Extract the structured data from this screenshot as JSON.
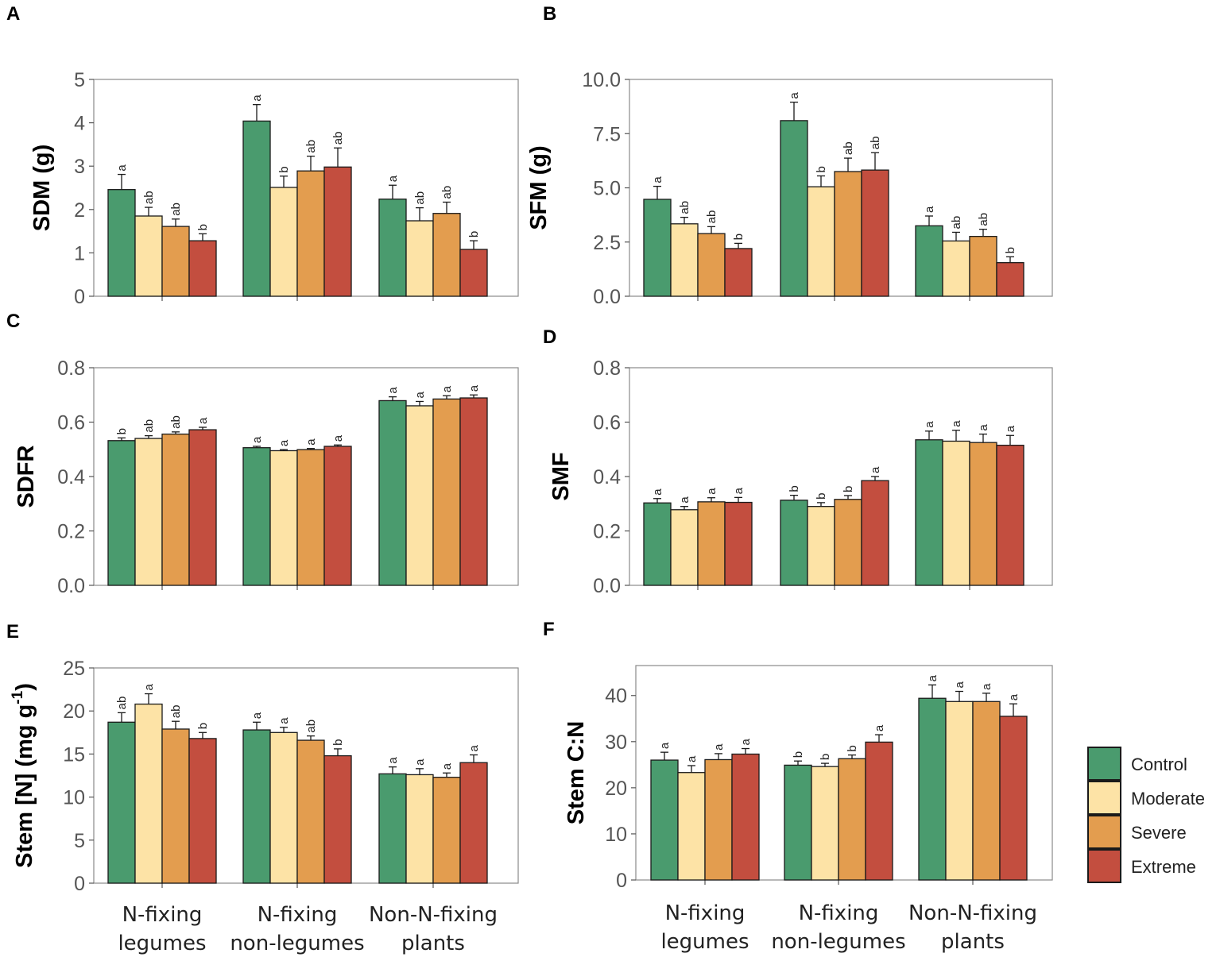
{
  "chart_data": {
    "type": "bar",
    "categories": [
      "N-fixing legumes",
      "N-fixing non-legumes",
      "Non-N-fixing plants"
    ],
    "category_lines": [
      [
        "N-fixing",
        "legumes"
      ],
      [
        "N-fixing",
        "non-legumes"
      ],
      [
        "Non-N-fixing",
        "plants"
      ]
    ],
    "legend": [
      {
        "name": "Control",
        "color": "#4a9b6e"
      },
      {
        "name": "Moderate",
        "color": "#fde3a6"
      },
      {
        "name": "Severe",
        "color": "#e39d4f"
      },
      {
        "name": "Extreme",
        "color": "#c34e3f"
      }
    ],
    "panels": [
      {
        "letter": "A",
        "ylabel": "SDM (g)",
        "ylim": [
          0,
          5
        ],
        "yticks": [
          0,
          1,
          2,
          3,
          4,
          5
        ],
        "ytick_labels": [
          "0",
          "1",
          "2",
          "3",
          "4",
          "5"
        ],
        "series": [
          {
            "name": "Control",
            "values": [
              2.46,
              4.04,
              2.24
            ],
            "errors": [
              0.35,
              0.38,
              0.32
            ],
            "letters": [
              "a",
              "a",
              "a"
            ]
          },
          {
            "name": "Moderate",
            "values": [
              1.85,
              2.51,
              1.74
            ],
            "errors": [
              0.2,
              0.26,
              0.3
            ],
            "letters": [
              "ab",
              "b",
              "ab"
            ]
          },
          {
            "name": "Severe",
            "values": [
              1.61,
              2.89,
              1.91
            ],
            "errors": [
              0.17,
              0.34,
              0.26
            ],
            "letters": [
              "ab",
              "ab",
              "ab"
            ]
          },
          {
            "name": "Extreme",
            "values": [
              1.28,
              2.98,
              1.08
            ],
            "errors": [
              0.16,
              0.44,
              0.2
            ],
            "letters": [
              "b",
              "ab",
              "b"
            ]
          }
        ]
      },
      {
        "letter": "B",
        "ylabel": "SFM (g)",
        "ylim": [
          0,
          10
        ],
        "yticks": [
          0,
          2.5,
          5,
          7.5,
          10
        ],
        "ytick_labels": [
          "0.0",
          "2.5",
          "5.0",
          "7.5",
          "10.0"
        ],
        "series": [
          {
            "name": "Control",
            "values": [
              4.47,
              8.1,
              3.25
            ],
            "errors": [
              0.6,
              0.85,
              0.45
            ],
            "letters": [
              "a",
              "a",
              "a"
            ]
          },
          {
            "name": "Moderate",
            "values": [
              3.34,
              5.05,
              2.55
            ],
            "errors": [
              0.3,
              0.5,
              0.4
            ],
            "letters": [
              "ab",
              "b",
              "ab"
            ]
          },
          {
            "name": "Severe",
            "values": [
              2.89,
              5.75,
              2.76
            ],
            "errors": [
              0.32,
              0.62,
              0.33
            ],
            "letters": [
              "ab",
              "ab",
              "ab"
            ]
          },
          {
            "name": "Extreme",
            "values": [
              2.2,
              5.82,
              1.55
            ],
            "errors": [
              0.24,
              0.8,
              0.27
            ],
            "letters": [
              "b",
              "ab",
              "b"
            ]
          }
        ]
      },
      {
        "letter": "C",
        "ylabel": "SDFR",
        "ylim": [
          0,
          0.8
        ],
        "yticks": [
          0,
          0.2,
          0.4,
          0.6,
          0.8
        ],
        "ytick_labels": [
          "0.0",
          "0.2",
          "0.4",
          "0.6",
          "0.8"
        ],
        "series": [
          {
            "name": "Control",
            "values": [
              0.532,
              0.506,
              0.679
            ],
            "errors": [
              0.01,
              0.005,
              0.014
            ],
            "letters": [
              "b",
              "a",
              "a"
            ]
          },
          {
            "name": "Moderate",
            "values": [
              0.54,
              0.495,
              0.66
            ],
            "errors": [
              0.01,
              0.004,
              0.016
            ],
            "letters": [
              "ab",
              "a",
              "a"
            ]
          },
          {
            "name": "Severe",
            "values": [
              0.556,
              0.499,
              0.685
            ],
            "errors": [
              0.008,
              0.004,
              0.012
            ],
            "letters": [
              "ab",
              "a",
              "a"
            ]
          },
          {
            "name": "Extreme",
            "values": [
              0.572,
              0.511,
              0.689
            ],
            "errors": [
              0.009,
              0.005,
              0.011
            ],
            "letters": [
              "a",
              "a",
              "a"
            ]
          }
        ]
      },
      {
        "letter": "D",
        "ylabel": "SMF",
        "ylim": [
          0,
          0.8
        ],
        "yticks": [
          0,
          0.2,
          0.4,
          0.6,
          0.8
        ],
        "ytick_labels": [
          "0.0",
          "0.2",
          "0.4",
          "0.6",
          "0.8"
        ],
        "series": [
          {
            "name": "Control",
            "values": [
              0.303,
              0.313,
              0.535
            ],
            "errors": [
              0.016,
              0.018,
              0.032
            ],
            "letters": [
              "a",
              "b",
              "a"
            ]
          },
          {
            "name": "Moderate",
            "values": [
              0.278,
              0.29,
              0.53
            ],
            "errors": [
              0.012,
              0.014,
              0.04
            ],
            "letters": [
              "a",
              "b",
              "a"
            ]
          },
          {
            "name": "Severe",
            "values": [
              0.307,
              0.316,
              0.525
            ],
            "errors": [
              0.015,
              0.014,
              0.031
            ],
            "letters": [
              "a",
              "b",
              "a"
            ]
          },
          {
            "name": "Extreme",
            "values": [
              0.305,
              0.385,
              0.515
            ],
            "errors": [
              0.018,
              0.015,
              0.036
            ],
            "letters": [
              "a",
              "a",
              "a"
            ]
          }
        ]
      },
      {
        "letter": "E",
        "ylabel": "Stem [N] (mg g",
        "ylabel_sup": "-1",
        "ylabel_end": ")",
        "ylim": [
          0,
          25
        ],
        "yticks": [
          0,
          5,
          10,
          15,
          20,
          25
        ],
        "ytick_labels": [
          "0",
          "5",
          "10",
          "15",
          "20",
          "25"
        ],
        "series": [
          {
            "name": "Control",
            "values": [
              18.7,
              17.8,
              12.7
            ],
            "errors": [
              1.1,
              0.9,
              0.8
            ],
            "letters": [
              "ab",
              "a",
              "a"
            ]
          },
          {
            "name": "Moderate",
            "values": [
              20.8,
              17.5,
              12.6
            ],
            "errors": [
              1.2,
              0.6,
              0.7
            ],
            "letters": [
              "a",
              "a",
              "a"
            ]
          },
          {
            "name": "Severe",
            "values": [
              17.9,
              16.6,
              12.3
            ],
            "errors": [
              0.9,
              0.5,
              0.5
            ],
            "letters": [
              "ab",
              "ab",
              "a"
            ]
          },
          {
            "name": "Extreme",
            "values": [
              16.8,
              14.8,
              14.0
            ],
            "errors": [
              0.7,
              0.8,
              0.9
            ],
            "letters": [
              "b",
              "b",
              "a"
            ]
          }
        ]
      },
      {
        "letter": "F",
        "ylabel": "Stem C:N",
        "ylim": [
          0,
          46.5
        ],
        "yticks": [
          0,
          10,
          20,
          30,
          40
        ],
        "ytick_labels": [
          "0",
          "10",
          "20",
          "30",
          "40"
        ],
        "series": [
          {
            "name": "Control",
            "values": [
              26.0,
              24.9,
              39.4
            ],
            "errors": [
              1.7,
              0.9,
              2.9
            ],
            "letters": [
              "a",
              "b",
              "a"
            ]
          },
          {
            "name": "Moderate",
            "values": [
              23.3,
              24.6,
              38.7
            ],
            "errors": [
              1.5,
              0.7,
              2.2
            ],
            "letters": [
              "a",
              "b",
              "a"
            ]
          },
          {
            "name": "Severe",
            "values": [
              26.1,
              26.3,
              38.7
            ],
            "errors": [
              1.3,
              0.8,
              1.8
            ],
            "letters": [
              "a",
              "b",
              "a"
            ]
          },
          {
            "name": "Extreme",
            "values": [
              27.3,
              29.9,
              35.5
            ],
            "errors": [
              1.2,
              1.6,
              2.7
            ],
            "letters": [
              "a",
              "a",
              "a"
            ]
          }
        ]
      }
    ]
  }
}
